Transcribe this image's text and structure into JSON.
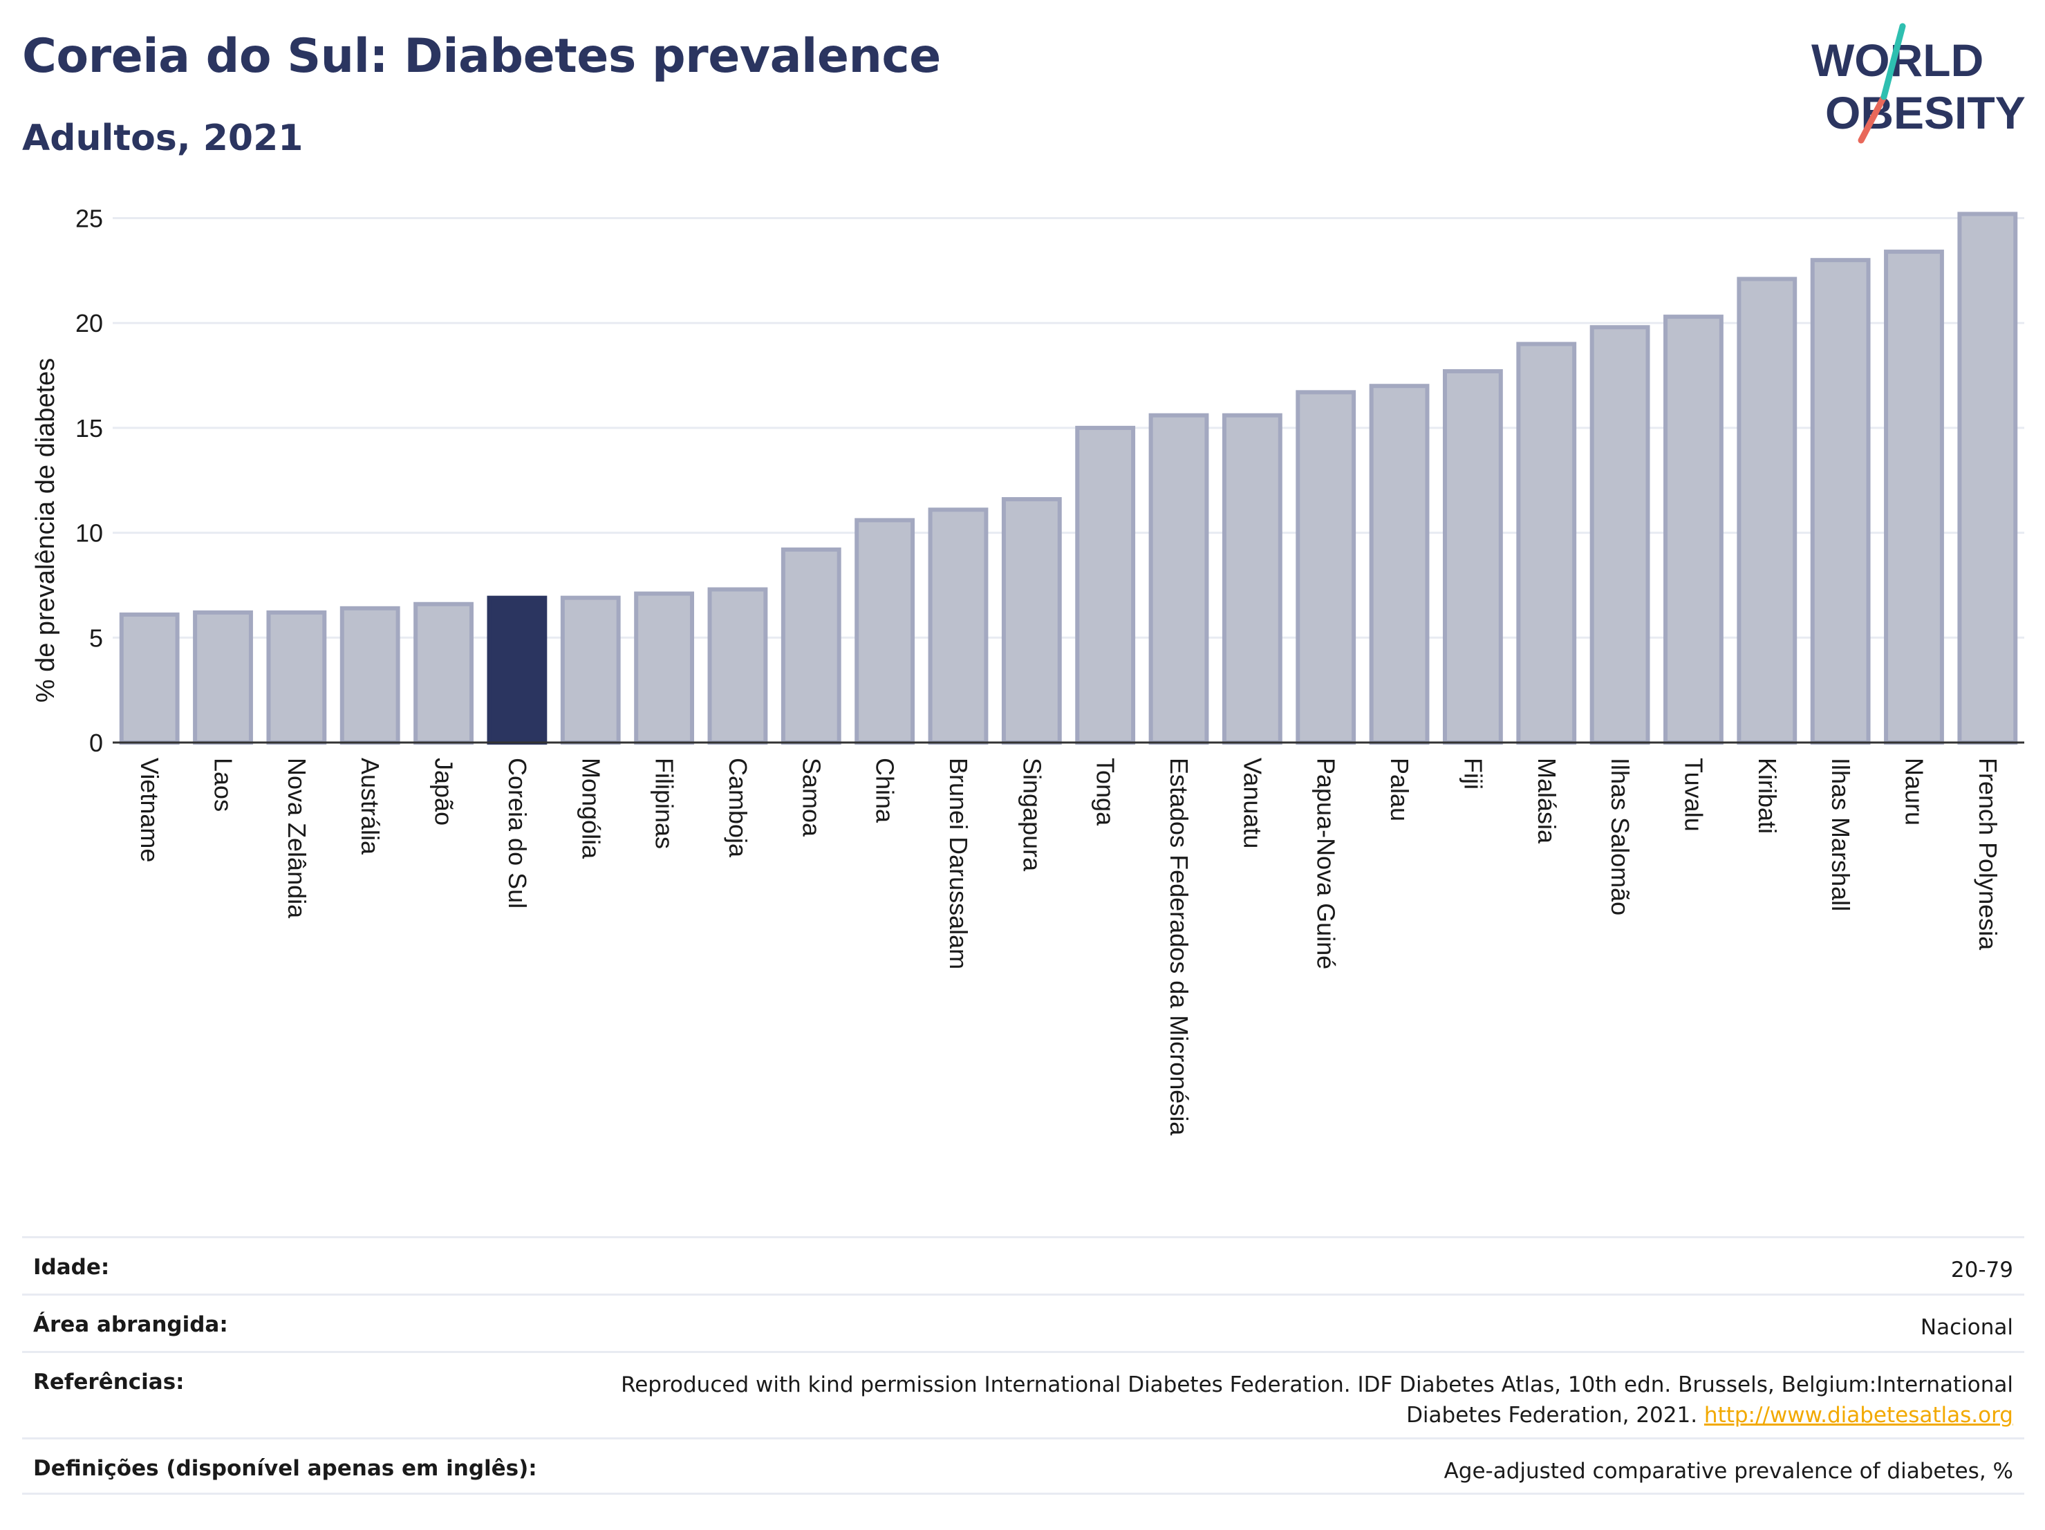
{
  "header": {
    "title": "Coreia do Sul: Diabetes prevalence",
    "subtitle": "Adultos, 2021"
  },
  "logo": {
    "line1": "WORLD",
    "line2": "OBESITY",
    "colors": {
      "navy": "#2b3560",
      "teal": "#2ebfb0",
      "coral": "#e8685a"
    }
  },
  "colors": {
    "bar": "#bcc0cd",
    "bar_stroke": "#a3a8c0",
    "highlight": "#2b3560",
    "grid": "#e8ebf2",
    "axis": "#333333"
  },
  "chart_data": {
    "type": "bar",
    "ylabel": "% de prevalência de diabetes",
    "ylim": [
      0,
      26.5
    ],
    "yticks": [
      0,
      5,
      10,
      15,
      20,
      25
    ],
    "grid": true,
    "highlight_category": "Coreia do Sul",
    "categories": [
      "Vietname",
      "Laos",
      "Nova Zelândia",
      "Austrália",
      "Japão",
      "Coreia do Sul",
      "Mongólia",
      "Filipinas",
      "Camboja",
      "Samoa",
      "China",
      "Brunei Darussalam",
      "Singapura",
      "Tonga",
      "Estados Federados da Micronésia",
      "Vanuatu",
      "Papua-Nova Guiné",
      "Palau",
      "Fiji",
      "Malásia",
      "Ilhas Salomão",
      "Tuvalu",
      "Kiribati",
      "Ilhas Marshall",
      "Nauru",
      "French Polynesia"
    ],
    "values": [
      6.1,
      6.2,
      6.2,
      6.4,
      6.6,
      6.9,
      6.9,
      7.1,
      7.3,
      9.2,
      10.6,
      11.1,
      11.6,
      15.0,
      15.6,
      15.6,
      16.7,
      17.0,
      17.7,
      19.0,
      19.8,
      20.3,
      22.1,
      23.0,
      23.4,
      25.2
    ]
  },
  "meta": {
    "age_label": "Idade:",
    "age_value": "20-79",
    "area_label": "Área abrangida:",
    "area_value": "Nacional",
    "ref_label": "Referências:",
    "ref_line1": "Reproduced with kind permission International Diabetes Federation.  IDF Diabetes Atlas, 10th edn. Brussels, Belgium:International",
    "ref_line2": "Diabetes Federation, 2021.",
    "ref_link": "http://www.diabetesatlas.org",
    "def_label": "Definições (disponível apenas em inglês):",
    "def_value": "Age-adjusted comparative prevalence of diabetes, %"
  }
}
